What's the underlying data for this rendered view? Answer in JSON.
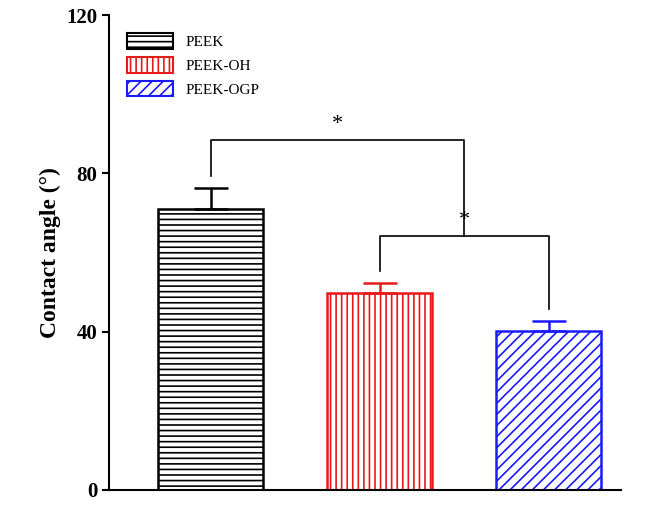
{
  "chart_data": {
    "type": "bar",
    "y_label": "Contact angle (°)",
    "categories": [
      "PEEK",
      "PEEK-OH",
      "PEEK-OGP"
    ],
    "values": [
      71.1,
      49.7,
      40.1
    ],
    "errors": [
      5.3,
      2.5,
      2.5
    ],
    "colors": [
      "#000000",
      "#e8191b",
      "#1a1aff"
    ],
    "ylim": [
      0,
      120
    ],
    "yticks": [
      0,
      40,
      80,
      120
    ],
    "legend": "upper left",
    "tick_labels": "y",
    "grid": false,
    "significance": [
      {
        "groups": [
          "PEEK-OH",
          "PEEK-OGP"
        ],
        "label": "*"
      },
      {
        "groups": [
          "PEEK",
          [
            "PEEK-OH",
            "PEEK-OGP"
          ]
        ],
        "label": "*"
      }
    ]
  }
}
